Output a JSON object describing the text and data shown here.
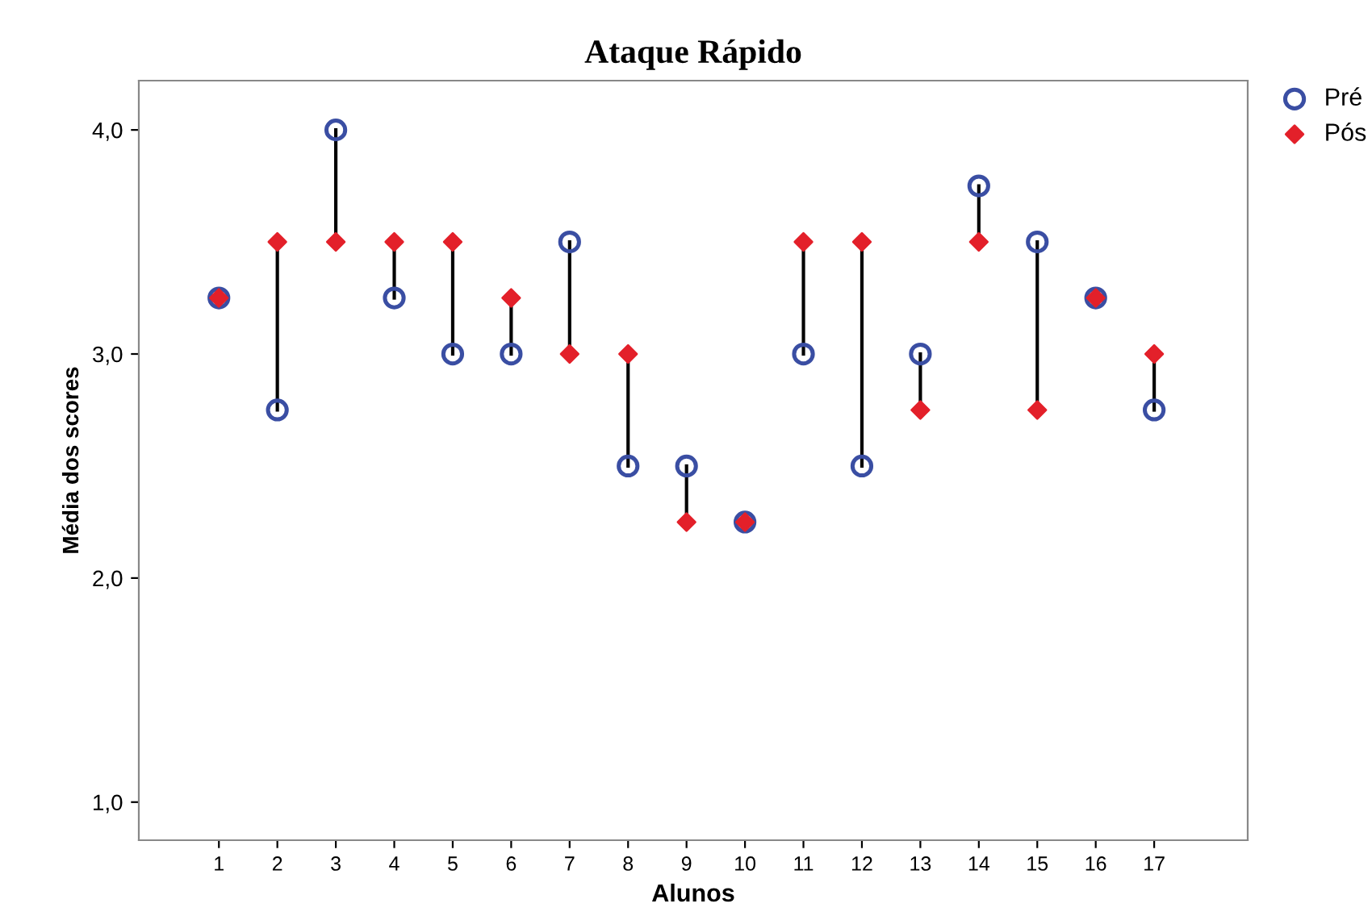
{
  "chart_data": {
    "type": "scatter",
    "title": "Ataque Rápido",
    "xlabel": "Alunos",
    "ylabel": "Média dos scores",
    "categories": [
      "1",
      "2",
      "3",
      "4",
      "5",
      "6",
      "7",
      "8",
      "9",
      "10",
      "11",
      "12",
      "13",
      "14",
      "15",
      "16",
      "17"
    ],
    "series": [
      {
        "name": "Pré",
        "color": "#3a4ea3",
        "marker": "circle",
        "values": [
          3.25,
          2.75,
          4.0,
          3.25,
          3.0,
          3.0,
          3.5,
          2.5,
          2.5,
          2.25,
          3.0,
          2.5,
          3.0,
          3.75,
          3.5,
          3.25,
          2.75
        ]
      },
      {
        "name": "Pós",
        "color": "#e3202a",
        "marker": "diamond",
        "values": [
          3.25,
          3.5,
          3.5,
          3.5,
          3.5,
          3.25,
          3.0,
          3.0,
          2.25,
          2.25,
          3.5,
          3.5,
          2.75,
          3.5,
          2.75,
          3.25,
          3.0
        ]
      }
    ],
    "ylim": [
      0.83,
      4.22
    ],
    "yticks": [
      {
        "value": 1.0,
        "label": "1,0"
      },
      {
        "value": 2.0,
        "label": "2,0"
      },
      {
        "value": 3.0,
        "label": "3,0"
      },
      {
        "value": 4.0,
        "label": "4,0"
      }
    ],
    "grid": false,
    "legend": "top right"
  }
}
